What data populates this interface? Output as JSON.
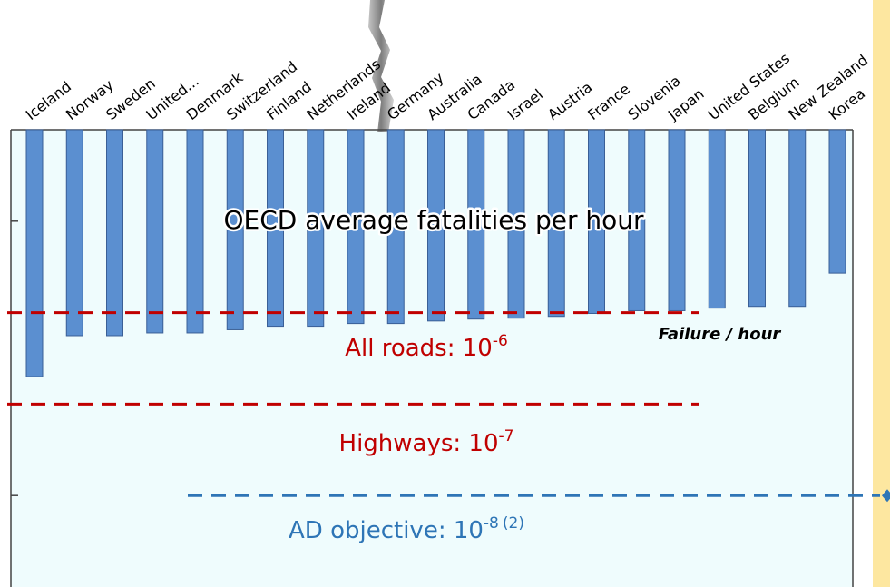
{
  "chart_data": {
    "type": "bar",
    "categories": [
      "Iceland",
      "Norway",
      "Sweden",
      "United...",
      "Denmark",
      "Switzerland",
      "Finland",
      "Netherlands",
      "Ireland",
      "Germany",
      "Australia",
      "Canada",
      "Israel",
      "Austria",
      "France",
      "Slovenia",
      "Japan",
      "United States",
      "Belgium",
      "New Zealand",
      "Korea"
    ],
    "values": [
      2e-07,
      5.6e-07,
      5.6e-07,
      6e-07,
      6e-07,
      6.5e-07,
      7.1e-07,
      7.1e-07,
      7.6e-07,
      7.6e-07,
      8.1e-07,
      8.5e-07,
      8.7e-07,
      9.1e-07,
      9.8e-07,
      1.05e-06,
      1.05e-06,
      1.12e-06,
      1.17e-06,
      1.17e-06,
      2.7e-06
    ],
    "color": "#5b8fd0",
    "ylim": [
      1e-09,
      0.0001
    ],
    "yticks": [
      1e-05,
      1e-08
    ],
    "log_scale": true,
    "y_inverted": true,
    "overlay_title": "OECD average fatalities per hour",
    "unit_label": "Failure / hour",
    "reference_lines": [
      {
        "text": "All roads: 10",
        "exponent": "-6",
        "value": 1e-06,
        "color": "#c00000"
      },
      {
        "text": "Highways: 10",
        "exponent": "-7",
        "value": 1e-07,
        "color": "#c00000"
      },
      {
        "text": "AD objective: 10",
        "exponent": "-8",
        "note": "(2)",
        "value": 1e-08,
        "color": "#2e75b6"
      }
    ]
  }
}
